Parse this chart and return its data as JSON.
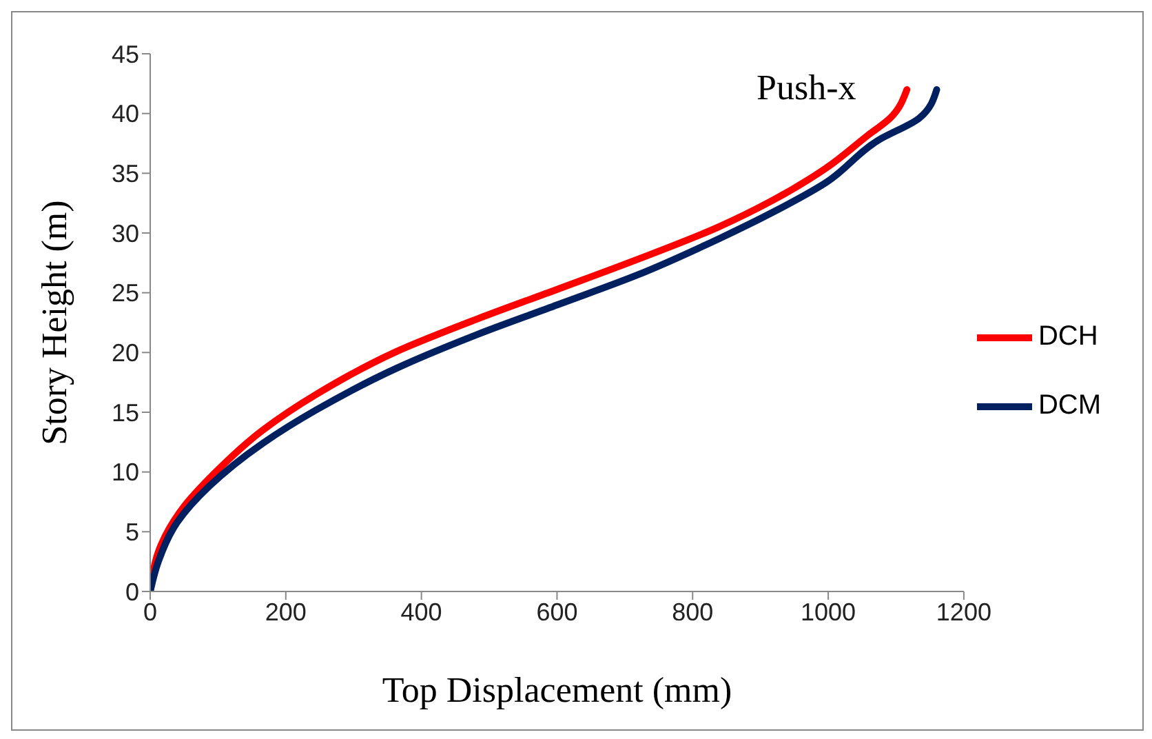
{
  "chart_data": {
    "type": "line",
    "xlabel": "Top Displacement (mm)",
    "ylabel": "Story Height (m)",
    "annotations": [
      "Push-x"
    ],
    "xlim": [
      0,
      1200
    ],
    "xticks": [
      0,
      200,
      400,
      600,
      800,
      1000,
      1200
    ],
    "ylim": [
      0,
      45
    ],
    "yticks": [
      0,
      5,
      10,
      15,
      20,
      25,
      30,
      35,
      40,
      45
    ],
    "grid": false,
    "legend": "right",
    "marker": "none",
    "line_style": "solid",
    "series": [
      {
        "name": "DCH",
        "color": "#ff0000",
        "x": [
          0,
          16,
          47,
          95,
          166,
          245,
          364,
          482,
          601,
          719,
          838,
          917,
          996,
          1059,
          1091,
          1116
        ],
        "values": [
          0,
          3.9,
          6.9,
          9.9,
          13.5,
          16.5,
          20.1,
          22.8,
          25.3,
          27.8,
          30.5,
          32.7,
          35.4,
          38.2,
          39.6,
          42.0
        ]
      },
      {
        "name": "DCM",
        "color": "#002060",
        "x": [
          0,
          12,
          40,
          87,
          166,
          245,
          364,
          482,
          601,
          719,
          838,
          917,
          996,
          1075,
          1134,
          1160
        ],
        "values": [
          0,
          2.5,
          5.8,
          8.8,
          12.4,
          15.2,
          18.7,
          21.5,
          24.0,
          26.5,
          29.5,
          31.7,
          34.2,
          37.8,
          39.6,
          42.0
        ]
      }
    ]
  }
}
